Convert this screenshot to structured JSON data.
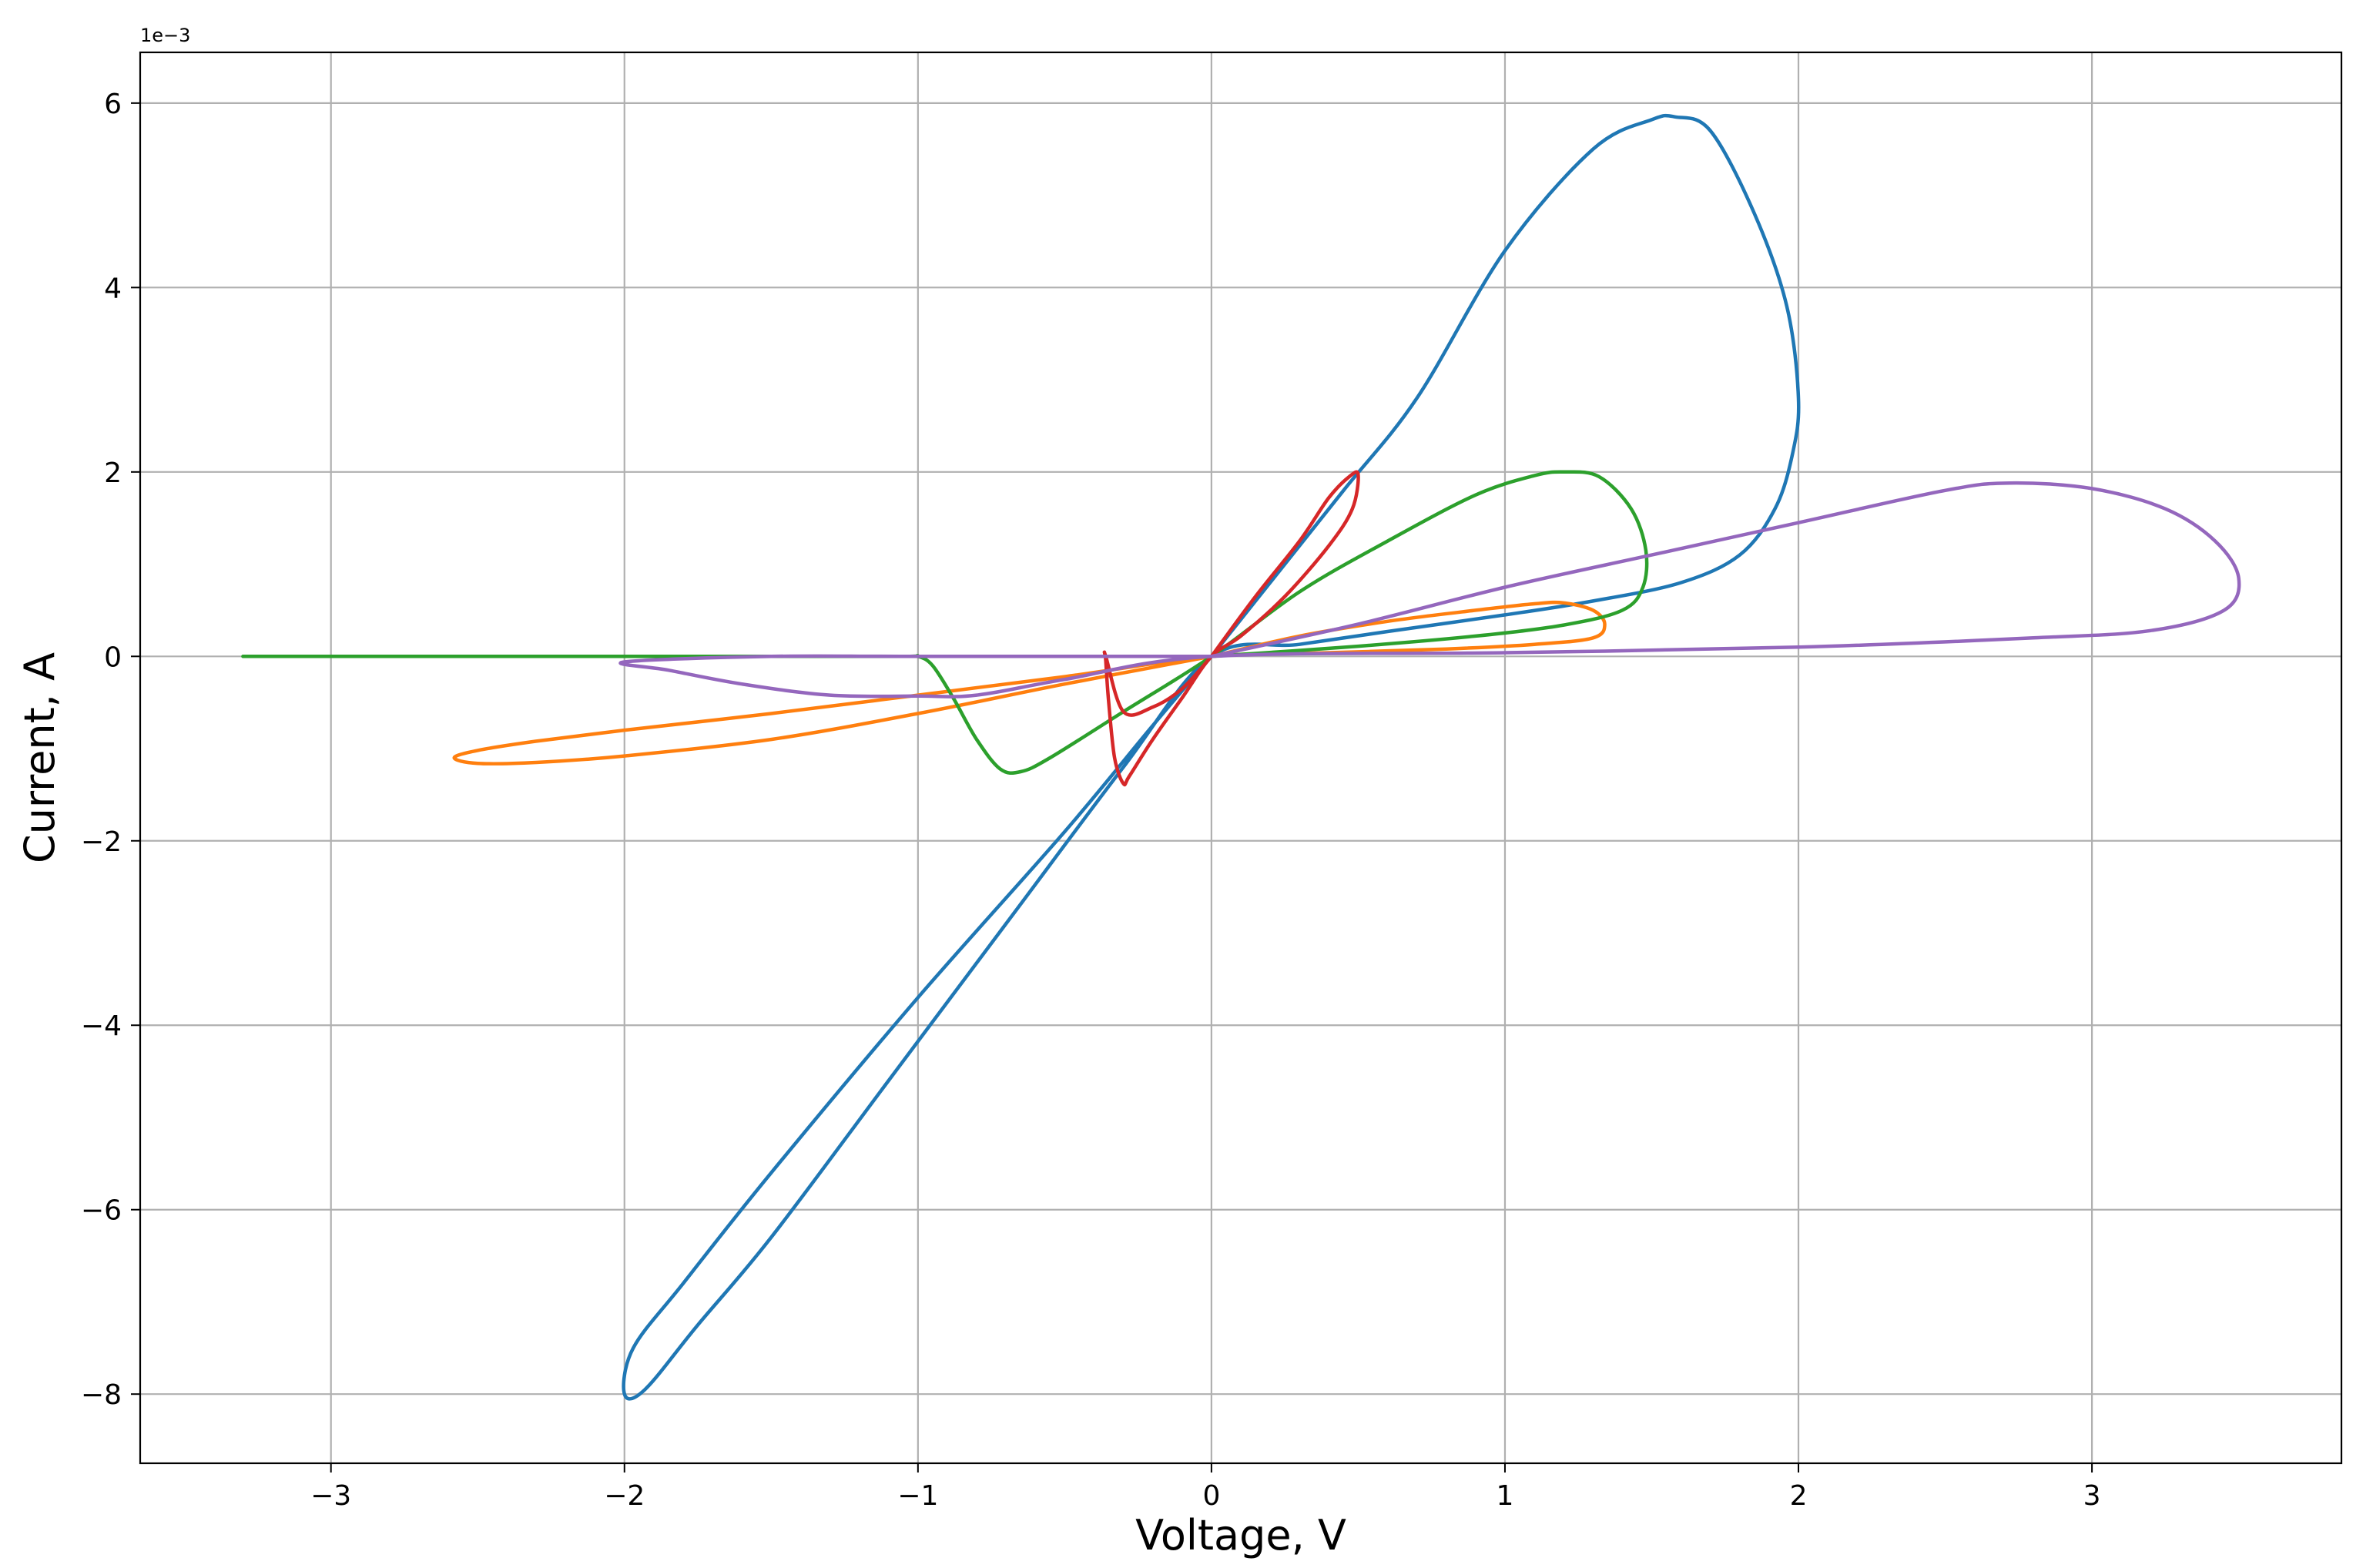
{
  "chart_data": {
    "type": "line",
    "title": "",
    "xlabel": "Voltage, V",
    "ylabel": "Current, A",
    "y_offset_label": "1e−3",
    "xlim": [
      -3.65,
      3.85
    ],
    "ylim": [
      -8.75,
      6.55
    ],
    "y_unit_scale": 0.001,
    "x_ticks": [
      -3,
      -2,
      -1,
      0,
      1,
      2,
      3
    ],
    "x_tick_labels": [
      "−3",
      "−2",
      "−1",
      "0",
      "1",
      "2",
      "3"
    ],
    "y_ticks": [
      -8,
      -6,
      -4,
      -2,
      0,
      2,
      4,
      6
    ],
    "y_tick_labels": [
      "−8",
      "−6",
      "−4",
      "−2",
      "0",
      "2",
      "4",
      "6"
    ],
    "grid": true,
    "legend": false,
    "series": [
      {
        "color": "#1f77b4",
        "points": [
          [
            0,
            0
          ],
          [
            0.2,
            0.8
          ],
          [
            0.45,
            1.8
          ],
          [
            0.7,
            2.8
          ],
          [
            1.0,
            4.4
          ],
          [
            1.3,
            5.5
          ],
          [
            1.5,
            5.82
          ],
          [
            1.58,
            5.85
          ],
          [
            1.7,
            5.7
          ],
          [
            1.85,
            4.8
          ],
          [
            1.96,
            3.8
          ],
          [
            2.0,
            2.8
          ],
          [
            1.98,
            2.2
          ],
          [
            1.92,
            1.6
          ],
          [
            1.8,
            1.1
          ],
          [
            1.6,
            0.8
          ],
          [
            1.3,
            0.6
          ],
          [
            1.0,
            0.45
          ],
          [
            0.6,
            0.27
          ],
          [
            0.3,
            0.13
          ],
          [
            0,
            0
          ],
          [
            -0.3,
            -1.2
          ],
          [
            -0.7,
            -2.9
          ],
          [
            -1.1,
            -4.6
          ],
          [
            -1.5,
            -6.3
          ],
          [
            -1.75,
            -7.25
          ],
          [
            -1.93,
            -7.95
          ],
          [
            -2.0,
            -8.0
          ],
          [
            -1.97,
            -7.5
          ],
          [
            -1.8,
            -6.8
          ],
          [
            -1.5,
            -5.6
          ],
          [
            -1.0,
            -3.7
          ],
          [
            -0.5,
            -1.9
          ],
          [
            -0.2,
            -0.75
          ],
          [
            0,
            0
          ]
        ]
      },
      {
        "color": "#ff7f0e",
        "points": [
          [
            0,
            0
          ],
          [
            0.3,
            0.22
          ],
          [
            0.6,
            0.38
          ],
          [
            0.9,
            0.5
          ],
          [
            1.1,
            0.57
          ],
          [
            1.2,
            0.58
          ],
          [
            1.3,
            0.5
          ],
          [
            1.34,
            0.35
          ],
          [
            1.3,
            0.2
          ],
          [
            1.1,
            0.13
          ],
          [
            0.8,
            0.08
          ],
          [
            0.4,
            0.04
          ],
          [
            0,
            0
          ],
          [
            -0.5,
            -0.22
          ],
          [
            -1.0,
            -0.42
          ],
          [
            -1.5,
            -0.62
          ],
          [
            -2.0,
            -0.8
          ],
          [
            -2.3,
            -0.92
          ],
          [
            -2.5,
            -1.02
          ],
          [
            -2.58,
            -1.1
          ],
          [
            -2.5,
            -1.16
          ],
          [
            -2.3,
            -1.15
          ],
          [
            -2.0,
            -1.08
          ],
          [
            -1.5,
            -0.9
          ],
          [
            -1.0,
            -0.62
          ],
          [
            -0.5,
            -0.3
          ],
          [
            0,
            0
          ]
        ]
      },
      {
        "color": "#2ca02c",
        "points": [
          [
            -3.3,
            0
          ],
          [
            -2.5,
            0
          ],
          [
            -1.5,
            0
          ],
          [
            -1.05,
            0
          ],
          [
            -1.0,
            0
          ],
          [
            -0.95,
            -0.1
          ],
          [
            -0.88,
            -0.45
          ],
          [
            -0.8,
            -0.9
          ],
          [
            -0.72,
            -1.22
          ],
          [
            -0.65,
            -1.25
          ],
          [
            -0.55,
            -1.1
          ],
          [
            -0.3,
            -0.6
          ],
          [
            0,
            0
          ],
          [
            0.3,
            0.7
          ],
          [
            0.6,
            1.25
          ],
          [
            0.9,
            1.75
          ],
          [
            1.1,
            1.96
          ],
          [
            1.2,
            2.0
          ],
          [
            1.32,
            1.95
          ],
          [
            1.43,
            1.6
          ],
          [
            1.48,
            1.15
          ],
          [
            1.47,
            0.75
          ],
          [
            1.4,
            0.5
          ],
          [
            1.2,
            0.34
          ],
          [
            0.9,
            0.22
          ],
          [
            0.5,
            0.11
          ],
          [
            0,
            0
          ]
        ]
      },
      {
        "color": "#d62728",
        "points": [
          [
            0,
            0
          ],
          [
            0.15,
            0.65
          ],
          [
            0.3,
            1.25
          ],
          [
            0.4,
            1.72
          ],
          [
            0.47,
            1.95
          ],
          [
            0.5,
            1.97
          ],
          [
            0.48,
            1.6
          ],
          [
            0.4,
            1.2
          ],
          [
            0.25,
            0.65
          ],
          [
            0.1,
            0.22
          ],
          [
            0,
            0
          ],
          [
            -0.1,
            -0.45
          ],
          [
            -0.2,
            -0.9
          ],
          [
            -0.28,
            -1.3
          ],
          [
            -0.3,
            -1.38
          ],
          [
            -0.33,
            -1.1
          ],
          [
            -0.35,
            -0.5
          ],
          [
            -0.36,
            -0.05
          ],
          [
            -0.36,
            0
          ],
          [
            -0.3,
            -0.6
          ],
          [
            -0.2,
            -0.55
          ],
          [
            -0.1,
            -0.35
          ],
          [
            0,
            0
          ]
        ]
      },
      {
        "color": "#9467bd",
        "points": [
          [
            0,
            0
          ],
          [
            0.5,
            0.35
          ],
          [
            1.0,
            0.75
          ],
          [
            1.5,
            1.1
          ],
          [
            2.0,
            1.45
          ],
          [
            2.5,
            1.8
          ],
          [
            2.72,
            1.88
          ],
          [
            3.0,
            1.82
          ],
          [
            3.25,
            1.6
          ],
          [
            3.42,
            1.25
          ],
          [
            3.5,
            0.85
          ],
          [
            3.45,
            0.5
          ],
          [
            3.2,
            0.28
          ],
          [
            2.8,
            0.2
          ],
          [
            2.0,
            0.1
          ],
          [
            1.0,
            0.04
          ],
          [
            0,
            0
          ],
          [
            -0.5,
            -0.25
          ],
          [
            -0.8,
            -0.42
          ],
          [
            -1.0,
            -0.43
          ],
          [
            -1.3,
            -0.42
          ],
          [
            -1.6,
            -0.3
          ],
          [
            -1.85,
            -0.15
          ],
          [
            -2.0,
            -0.06
          ],
          [
            -1.5,
            0
          ],
          [
            -1.0,
            0
          ],
          [
            0,
            0
          ]
        ]
      }
    ]
  }
}
